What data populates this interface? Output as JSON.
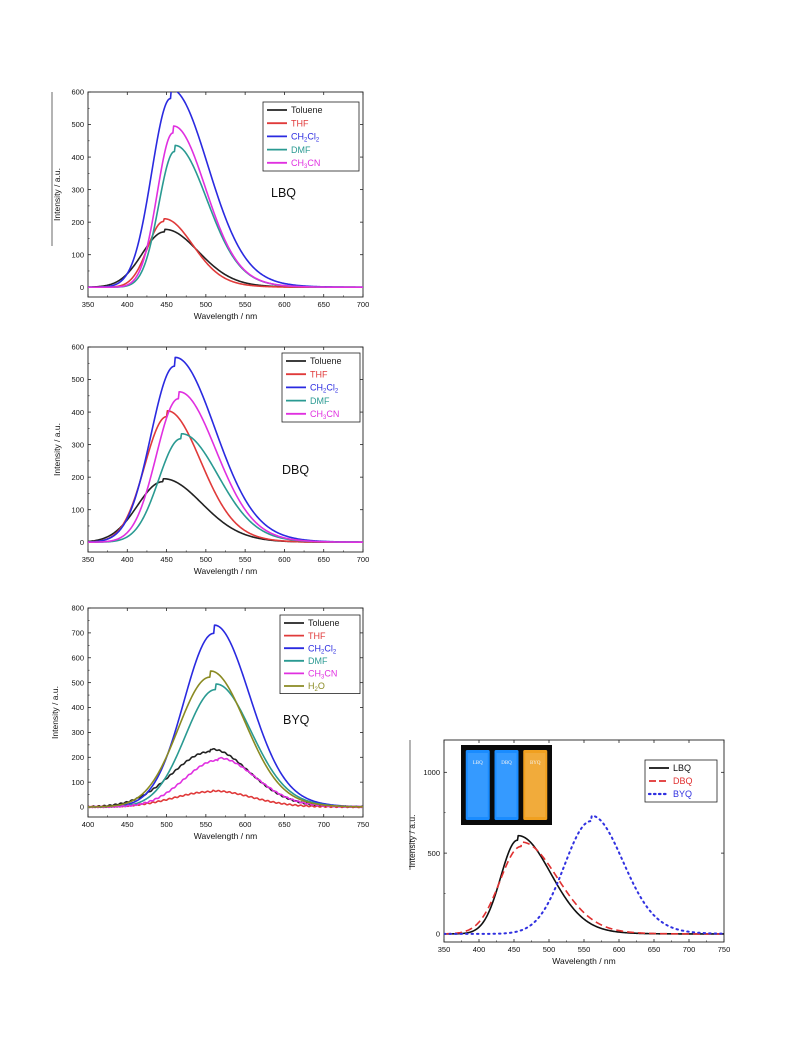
{
  "charts": [
    {
      "type": "line",
      "annotation": "LBQ",
      "xlabel": "Wavelength / nm",
      "ylabel": "Intensity / a.u.",
      "xlim": [
        350,
        700
      ],
      "ylim": [
        -30,
        600
      ],
      "xticks": [
        350,
        400,
        450,
        500,
        550,
        600,
        650,
        700
      ],
      "yticks": [
        0,
        100,
        200,
        300,
        400,
        500,
        600
      ],
      "legend_position": "top-right",
      "series": [
        {
          "name": "Toluene",
          "legend": [
            "Toluene"
          ],
          "color": "#222222",
          "style": "solid",
          "peak": 447,
          "height": 170,
          "wl": 28,
          "wr": 42
        },
        {
          "name": "THF",
          "legend": [
            "THF"
          ],
          "color": "#e03a3a",
          "style": "solid",
          "peak": 446,
          "height": 202,
          "wl": 20,
          "wr": 36
        },
        {
          "name": "CH2Cl2",
          "legend": [
            "CH",
            "2",
            "Cl",
            "2"
          ],
          "color": "#2a2ae0",
          "style": "solid",
          "peak": 455,
          "height": 580,
          "wl": 24,
          "wr": 46
        },
        {
          "name": "DMF",
          "legend": [
            "DMF"
          ],
          "color": "#2a9a92",
          "style": "solid",
          "peak": 460,
          "height": 417,
          "wl": 20,
          "wr": 40
        },
        {
          "name": "CH3CN",
          "legend": [
            "CH",
            "3",
            "CN"
          ],
          "color": "#e030e0",
          "style": "solid",
          "peak": 458,
          "height": 474,
          "wl": 20,
          "wr": 40
        }
      ]
    },
    {
      "type": "line",
      "annotation": "DBQ",
      "xlabel": "Wavelength / nm",
      "ylabel": "Intensity / a.u.",
      "xlim": [
        350,
        700
      ],
      "ylim": [
        -30,
        600
      ],
      "xticks": [
        350,
        400,
        450,
        500,
        550,
        600,
        650,
        700
      ],
      "yticks": [
        0,
        100,
        200,
        300,
        400,
        500,
        600
      ],
      "legend_position": "top-right",
      "series": [
        {
          "name": "Toluene",
          "legend": [
            "Toluene"
          ],
          "color": "#222222",
          "style": "solid",
          "peak": 445,
          "height": 186,
          "wl": 32,
          "wr": 48
        },
        {
          "name": "THF",
          "legend": [
            "THF"
          ],
          "color": "#e03a3a",
          "style": "solid",
          "peak": 450,
          "height": 386,
          "wl": 28,
          "wr": 42
        },
        {
          "name": "CH2Cl2",
          "legend": [
            "CH",
            "2",
            "Cl",
            "2"
          ],
          "color": "#2a2ae0",
          "style": "solid",
          "peak": 460,
          "height": 541,
          "wl": 30,
          "wr": 50
        },
        {
          "name": "DMF",
          "legend": [
            "DMF"
          ],
          "color": "#2a9a92",
          "style": "solid",
          "peak": 468,
          "height": 318,
          "wl": 28,
          "wr": 46
        },
        {
          "name": "CH3CN",
          "legend": [
            "CH",
            "3",
            "CN"
          ],
          "color": "#e030e0",
          "style": "solid",
          "peak": 465,
          "height": 441,
          "wl": 28,
          "wr": 46
        }
      ]
    },
    {
      "type": "line",
      "annotation": "BYQ",
      "xlabel": "Wavelength / nm",
      "ylabel": "Intensity / a.u.",
      "xlim": [
        400,
        750
      ],
      "ylim": [
        -40,
        800
      ],
      "xticks": [
        400,
        450,
        500,
        550,
        600,
        650,
        700,
        750
      ],
      "yticks": [
        0,
        100,
        200,
        300,
        400,
        500,
        600,
        700,
        800
      ],
      "legend_position": "top-right",
      "series": [
        {
          "name": "Toluene",
          "legend": [
            "Toluene"
          ],
          "color": "#222222",
          "style": "solid",
          "peak": 555,
          "height": 222,
          "wl": 48,
          "wr": 48
        },
        {
          "name": "THF",
          "legend": [
            "THF"
          ],
          "color": "#e03a3a",
          "style": "solid",
          "peak": 558,
          "height": 62,
          "wl": 48,
          "wr": 48
        },
        {
          "name": "CH2Cl2",
          "legend": [
            "CH",
            "2",
            "Cl",
            "2"
          ],
          "color": "#2a2ae0",
          "style": "solid",
          "peak": 560,
          "height": 698,
          "wl": 38,
          "wr": 44
        },
        {
          "name": "DMF",
          "legend": [
            "DMF"
          ],
          "color": "#2a9a92",
          "style": "solid",
          "peak": 562,
          "height": 472,
          "wl": 38,
          "wr": 44
        },
        {
          "name": "CH3CN",
          "legend": [
            "CH",
            "3",
            "CN"
          ],
          "color": "#e030e0",
          "style": "solid",
          "peak": 565,
          "height": 188,
          "wl": 42,
          "wr": 46
        },
        {
          "name": "H2O",
          "legend": [
            "H",
            "2",
            "O"
          ],
          "color": "#8a8a22",
          "style": "solid",
          "peak": 555,
          "height": 522,
          "wl": 40,
          "wr": 44
        }
      ]
    },
    {
      "type": "line",
      "xlabel": "Wavelength / nm",
      "ylabel": "Intensity / a.u.",
      "xlim": [
        350,
        750
      ],
      "ylim": [
        -50,
        1200
      ],
      "xticks": [
        350,
        400,
        450,
        500,
        550,
        600,
        650,
        700,
        750
      ],
      "yticks": [
        0,
        500,
        1000
      ],
      "legend_position": "top-right",
      "inset_photo_labels": [
        "LBQ",
        "DBQ",
        "BYQ"
      ],
      "inset_photo_colors": [
        "#1a8cff",
        "#1a8cff",
        "#f0a020"
      ],
      "series": [
        {
          "name": "LBQ",
          "legend": [
            "LBQ"
          ],
          "color": "#111111",
          "style": "solid",
          "peak": 455,
          "height": 580,
          "wl": 24,
          "wr": 46
        },
        {
          "name": "DBQ",
          "legend": [
            "DBQ"
          ],
          "color": "#e03030",
          "style": "dash",
          "peak": 460,
          "height": 541,
          "wl": 30,
          "wr": 50
        },
        {
          "name": "BYQ",
          "legend": [
            "BYQ"
          ],
          "color": "#3030e0",
          "style": "dot",
          "peak": 560,
          "height": 698,
          "wl": 38,
          "wr": 44
        }
      ]
    }
  ]
}
